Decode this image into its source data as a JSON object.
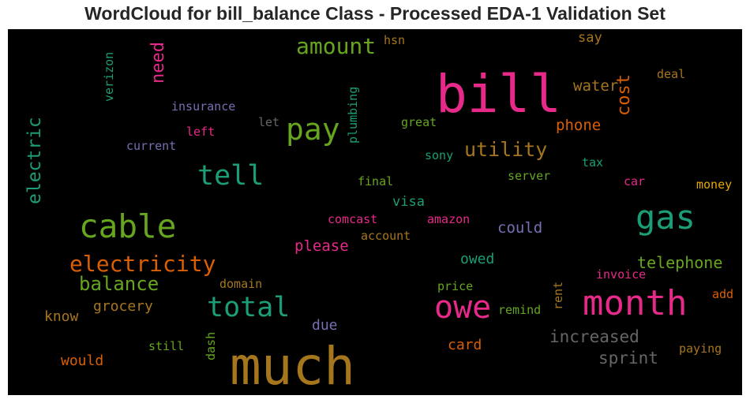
{
  "chart_data": {
    "type": "wordcloud",
    "title": "WordCloud for bill_balance Class - Processed EDA-1 Validation Set",
    "background": "#000000",
    "words": [
      {
        "text": "much",
        "color": "#a6761d",
        "vertical": false
      },
      {
        "text": "bill",
        "color": "#e7298a",
        "vertical": false
      },
      {
        "text": "month",
        "color": "#e7298a",
        "vertical": false
      },
      {
        "text": "cable",
        "color": "#66a61e",
        "vertical": false
      },
      {
        "text": "owe",
        "color": "#e7298a",
        "vertical": false
      },
      {
        "text": "gas",
        "color": "#1b9e77",
        "vertical": false
      },
      {
        "text": "pay",
        "color": "#66a61e",
        "vertical": false
      },
      {
        "text": "total",
        "color": "#1b9e77",
        "vertical": false
      },
      {
        "text": "tell",
        "color": "#1b9e77",
        "vertical": false
      },
      {
        "text": "electricity",
        "color": "#d95f02",
        "vertical": false
      },
      {
        "text": "amount",
        "color": "#66a61e",
        "vertical": false
      },
      {
        "text": "electric",
        "color": "#1b9e77",
        "vertical": true
      },
      {
        "text": "utility",
        "color": "#a6761d",
        "vertical": false
      },
      {
        "text": "balance",
        "color": "#66a61e",
        "vertical": false
      },
      {
        "text": "need",
        "color": "#e7298a",
        "vertical": true
      },
      {
        "text": "cost",
        "color": "#d95f02",
        "vertical": true
      },
      {
        "text": "increased",
        "color": "#666666",
        "vertical": false
      },
      {
        "text": "telephone",
        "color": "#66a61e",
        "vertical": false
      },
      {
        "text": "sprint",
        "color": "#666666",
        "vertical": false
      },
      {
        "text": "phone",
        "color": "#d95f02",
        "vertical": false
      },
      {
        "text": "water",
        "color": "#a6761d",
        "vertical": false
      },
      {
        "text": "could",
        "color": "#7570b3",
        "vertical": false
      },
      {
        "text": "please",
        "color": "#e7298a",
        "vertical": false
      },
      {
        "text": "grocery",
        "color": "#a6761d",
        "vertical": false
      },
      {
        "text": "owed",
        "color": "#1b9e77",
        "vertical": false
      },
      {
        "text": "visa",
        "color": "#1b9e77",
        "vertical": false
      },
      {
        "text": "card",
        "color": "#d95f02",
        "vertical": false
      },
      {
        "text": "would",
        "color": "#d95f02",
        "vertical": false
      },
      {
        "text": "know",
        "color": "#a6761d",
        "vertical": false
      },
      {
        "text": "due",
        "color": "#7570b3",
        "vertical": false
      },
      {
        "text": "say",
        "color": "#a6761d",
        "vertical": false
      },
      {
        "text": "money",
        "color": "#e6ab02",
        "vertical": false
      },
      {
        "text": "paying",
        "color": "#a6761d",
        "vertical": false
      },
      {
        "text": "add",
        "color": "#d95f02",
        "vertical": false
      },
      {
        "text": "insurance",
        "color": "#7570b3",
        "vertical": false
      },
      {
        "text": "verizon",
        "color": "#1b9e77",
        "vertical": true
      },
      {
        "text": "plumbing",
        "color": "#1b9e77",
        "vertical": true
      },
      {
        "text": "current",
        "color": "#7570b3",
        "vertical": false
      },
      {
        "text": "left",
        "color": "#e7298a",
        "vertical": false
      },
      {
        "text": "let",
        "color": "#666666",
        "vertical": false
      },
      {
        "text": "great",
        "color": "#66a61e",
        "vertical": false
      },
      {
        "text": "hsn",
        "color": "#a6761d",
        "vertical": false
      },
      {
        "text": "deal",
        "color": "#a6761d",
        "vertical": false
      },
      {
        "text": "sony",
        "color": "#1b9e77",
        "vertical": false
      },
      {
        "text": "final",
        "color": "#66a61e",
        "vertical": false
      },
      {
        "text": "server",
        "color": "#66a61e",
        "vertical": false
      },
      {
        "text": "tax",
        "color": "#1b9e77",
        "vertical": false
      },
      {
        "text": "car",
        "color": "#e7298a",
        "vertical": false
      },
      {
        "text": "comcast",
        "color": "#e7298a",
        "vertical": false
      },
      {
        "text": "amazon",
        "color": "#e7298a",
        "vertical": false
      },
      {
        "text": "account",
        "color": "#a6761d",
        "vertical": false
      },
      {
        "text": "domain",
        "color": "#a6761d",
        "vertical": false
      },
      {
        "text": "price",
        "color": "#66a61e",
        "vertical": false
      },
      {
        "text": "rent",
        "color": "#a6761d",
        "vertical": true
      },
      {
        "text": "invoice",
        "color": "#e7298a",
        "vertical": false
      },
      {
        "text": "remind",
        "color": "#66a61e",
        "vertical": false
      },
      {
        "text": "still",
        "color": "#66a61e",
        "vertical": false
      },
      {
        "text": "dash",
        "color": "#66a61e",
        "vertical": true
      }
    ]
  }
}
